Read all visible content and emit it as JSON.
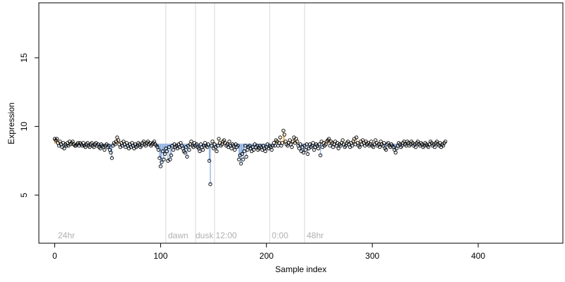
{
  "chart_data": {
    "type": "scatter",
    "xlabel": "Sample index",
    "ylabel": "Expression",
    "xlim": [
      -15,
      480
    ],
    "ylim": [
      1.5,
      19
    ],
    "x_ticks": [
      0,
      100,
      200,
      300,
      400
    ],
    "y_ticks": [
      5,
      10,
      15
    ],
    "grid": false,
    "legend": "none",
    "baseline": 8.75,
    "region_lines": [
      105,
      133,
      151,
      203,
      236
    ],
    "region_labels": [
      {
        "text": "24hr",
        "x": 3
      },
      {
        "text": "dawn",
        "x": 107
      },
      {
        "text": "dusk",
        "x": 133
      },
      {
        "text": "12:00",
        "x": 152
      },
      {
        "text": "0:00",
        "x": 205
      },
      {
        "text": "48hr",
        "x": 238
      }
    ],
    "series": [
      {
        "name": "",
        "y": [
          9.1,
          9.0,
          9.1,
          8.8,
          8.6,
          8.9,
          8.7,
          8.5,
          8.8,
          8.4,
          8.7,
          8.6,
          8.8,
          8.6,
          8.9,
          8.7,
          8.8,
          8.9,
          8.7,
          8.6,
          8.6,
          8.7,
          8.8,
          8.6,
          8.8,
          8.7,
          8.6,
          8.8,
          8.6,
          8.5,
          8.7,
          8.8,
          8.6,
          8.5,
          8.7,
          8.8,
          8.6,
          8.5,
          8.7,
          8.8,
          8.6,
          8.7,
          8.5,
          8.4,
          8.7,
          8.6,
          8.5,
          8.3,
          8.6,
          8.7,
          8.5,
          8.6,
          8.3,
          8.1,
          7.7,
          8.6,
          8.8,
          8.7,
          8.9,
          9.2,
          9.0,
          8.7,
          8.5,
          8.8,
          8.6,
          8.9,
          8.7,
          8.5,
          8.8,
          8.6,
          8.4,
          8.7,
          8.5,
          8.8,
          8.6,
          8.4,
          8.7,
          8.5,
          8.6,
          8.8,
          8.7,
          8.5,
          8.6,
          8.8,
          8.9,
          8.7,
          8.6,
          8.8,
          8.9,
          8.7,
          8.8,
          8.6,
          8.7,
          8.8,
          8.9,
          8.7,
          8.6,
          8.5,
          8.3,
          7.7,
          7.1,
          7.4,
          8.2,
          7.6,
          8.0,
          8.4,
          8.2,
          7.5,
          8.5,
          7.6,
          7.9,
          8.6,
          8.3,
          8.7,
          8.5,
          8.6,
          8.4,
          8.7,
          8.5,
          8.8,
          8.6,
          8.4,
          8.2,
          8.1,
          8.5,
          7.8,
          8.6,
          8.3,
          8.7,
          8.9,
          8.6,
          8.5,
          8.8,
          8.6,
          8.7,
          8.5,
          8.4,
          8.2,
          8.7,
          8.5,
          8.3,
          8.6,
          8.8,
          8.6,
          8.5,
          8.7,
          7.5,
          5.8,
          8.6,
          8.9,
          8.4,
          8.7,
          8.5,
          8.2,
          8.6,
          9.1,
          8.8,
          8.6,
          8.7,
          8.9,
          9.0,
          8.8,
          8.6,
          8.7,
          8.5,
          8.9,
          8.6,
          8.4,
          8.7,
          8.6,
          8.3,
          8.7,
          8.5,
          8.6,
          7.6,
          7.9,
          7.3,
          8.0,
          7.6,
          8.2,
          8.6,
          7.8,
          8.3,
          8.5,
          8.6,
          8.4,
          8.2,
          8.5,
          8.3,
          8.7,
          8.5,
          8.6,
          8.3,
          8.4,
          8.6,
          8.5,
          8.3,
          8.6,
          8.4,
          8.2,
          8.5,
          8.7,
          8.4,
          8.6,
          8.5,
          8.3,
          8.6,
          8.8,
          8.6,
          9.0,
          8.9,
          8.6,
          8.8,
          9.2,
          8.6,
          8.8,
          9.7,
          9.4,
          8.9,
          8.7,
          8.6,
          8.8,
          9.0,
          8.7,
          8.5,
          8.9,
          9.2,
          8.8,
          9.1,
          8.9,
          8.6,
          8.4,
          8.7,
          8.2,
          8.5,
          8.1,
          8.6,
          8.3,
          8.7,
          8.0,
          8.4,
          8.7,
          8.5,
          8.6,
          8.8,
          8.3,
          8.5,
          8.7,
          8.6,
          8.4,
          8.7,
          7.9,
          8.9,
          8.5,
          8.8,
          8.6,
          8.7,
          8.9,
          9.0,
          9.1,
          8.6,
          8.9,
          8.8,
          8.5,
          8.7,
          8.9,
          8.6,
          8.8,
          8.4,
          8.7,
          8.6,
          8.8,
          9.0,
          8.7,
          8.5,
          8.6,
          8.8,
          8.9,
          8.7,
          8.5,
          8.8,
          8.6,
          8.9,
          9.1,
          8.7,
          9.2,
          8.8,
          8.6,
          8.5,
          8.9,
          8.7,
          9.0,
          8.8,
          8.6,
          8.9,
          8.7,
          8.8,
          8.6,
          8.7,
          8.9,
          8.6,
          8.5,
          8.7,
          9.0,
          8.8,
          8.6,
          8.7,
          8.5,
          8.9,
          8.7,
          8.6,
          8.8,
          8.4,
          8.3,
          8.7,
          8.8,
          8.6,
          8.5,
          8.7,
          8.6,
          8.5,
          8.3,
          8.1,
          8.4,
          8.6,
          8.8,
          8.7,
          8.5,
          8.6,
          8.8,
          8.9,
          8.7,
          8.6,
          8.9,
          8.8,
          8.6,
          8.7,
          8.9,
          8.8,
          8.6,
          8.7,
          8.5,
          8.8,
          8.9,
          8.7,
          8.6,
          8.8,
          8.7,
          8.5,
          8.6,
          8.8,
          8.7,
          8.6,
          8.5,
          8.7,
          8.9,
          8.8,
          8.6,
          8.7,
          8.5,
          8.8,
          8.9,
          8.7,
          8.6,
          8.8,
          8.5,
          8.7,
          8.6,
          8.8,
          8.9
        ]
      }
    ]
  }
}
